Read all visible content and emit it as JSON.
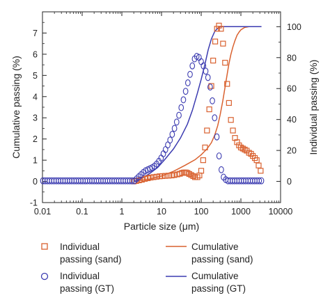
{
  "chart_data": {
    "type": "scatter",
    "xlabel": "Particle size (μm)",
    "ylabel": "Cumulative passing (%)",
    "y2label": "Individual passing (%)",
    "x_scale": "log",
    "xlim": [
      0.01,
      10000
    ],
    "ylim": [
      -1,
      8
    ],
    "y2lim": [
      -13.7,
      109.6
    ],
    "x_ticks": [
      "0.01",
      "0.1",
      "1",
      "10",
      "100",
      "1000",
      "10000"
    ],
    "y_ticks": [
      "-1",
      "0",
      "1",
      "2",
      "3",
      "4",
      "5",
      "6",
      "7"
    ],
    "y2_ticks": [
      "0",
      "20",
      "40",
      "60",
      "80",
      "100"
    ],
    "grid": false,
    "legend_position": "bottom",
    "colors": {
      "sand": "#d9612f",
      "gt": "#3b3bb0"
    },
    "series": [
      {
        "name": "Individual passing (sand)",
        "kind": "square-marker",
        "axis": "left",
        "x": [
          2.0,
          2.3,
          2.7,
          3.2,
          3.8,
          4.5,
          5.3,
          6.3,
          7.5,
          9.0,
          10.5,
          12.5,
          15,
          18,
          21,
          25,
          29,
          33,
          37,
          41,
          45,
          50,
          56,
          63,
          70,
          80,
          90,
          100,
          112,
          125,
          140,
          160,
          180,
          200,
          225,
          250,
          280,
          315,
          355,
          400,
          450,
          500,
          560,
          630,
          710,
          800,
          900,
          1000,
          1120,
          1250,
          1400,
          1600,
          1800,
          2000,
          2250,
          2500,
          2800,
          3150
        ],
        "y": [
          0.0,
          0.02,
          0.05,
          0.08,
          0.12,
          0.15,
          0.18,
          0.2,
          0.22,
          0.24,
          0.25,
          0.26,
          0.27,
          0.28,
          0.3,
          0.33,
          0.36,
          0.4,
          0.42,
          0.42,
          0.4,
          0.35,
          0.3,
          0.25,
          0.2,
          0.2,
          0.28,
          0.5,
          1.0,
          1.6,
          2.4,
          3.4,
          4.5,
          5.7,
          6.6,
          7.2,
          7.35,
          7.2,
          6.5,
          5.6,
          4.6,
          3.7,
          2.9,
          2.4,
          2.05,
          1.85,
          1.7,
          1.6,
          1.55,
          1.5,
          1.45,
          1.35,
          1.3,
          1.2,
          1.1,
          1.0,
          0.75,
          0.5
        ]
      },
      {
        "name": "Individual passing (GT)",
        "kind": "circle-marker",
        "axis": "left",
        "x": [
          0.0102,
          0.0116,
          0.0132,
          0.015,
          0.0171,
          0.0195,
          0.0222,
          0.0253,
          0.0288,
          0.0328,
          0.0373,
          0.0424,
          0.0483,
          0.055,
          0.0626,
          0.0712,
          0.0811,
          0.0923,
          0.105,
          0.12,
          0.136,
          0.155,
          0.177,
          0.201,
          0.229,
          0.26,
          0.296,
          0.337,
          0.384,
          0.437,
          0.497,
          0.566,
          0.644,
          0.733,
          0.834,
          0.949,
          1.08,
          1.23,
          1.4,
          1.59,
          1.81,
          2.06,
          2.35,
          2.67,
          3.04,
          3.46,
          3.94,
          4.49,
          5.11,
          5.81,
          6.62,
          7.53,
          8.57,
          9.75,
          11.1,
          12.6,
          14.4,
          16.4,
          18.6,
          21.2,
          24.1,
          27.5,
          31.3,
          35.6,
          40.5,
          46.1,
          52.4,
          59.7,
          67.9,
          77.3,
          88,
          100,
          114,
          130,
          148,
          168,
          191,
          218,
          248,
          282,
          321,
          365,
          416,
          473,
          539,
          613,
          698,
          794,
          904,
          1030,
          1170,
          1330,
          1520,
          1730,
          1970,
          2240,
          2550,
          2900,
          3300
        ],
        "y": [
          0.03,
          0.03,
          0.03,
          0.03,
          0.03,
          0.03,
          0.03,
          0.03,
          0.03,
          0.03,
          0.03,
          0.03,
          0.03,
          0.03,
          0.03,
          0.03,
          0.03,
          0.03,
          0.03,
          0.03,
          0.03,
          0.03,
          0.03,
          0.03,
          0.03,
          0.03,
          0.03,
          0.03,
          0.03,
          0.03,
          0.03,
          0.03,
          0.03,
          0.03,
          0.03,
          0.03,
          0.03,
          0.03,
          0.03,
          0.03,
          0.03,
          0.03,
          0.12,
          0.22,
          0.32,
          0.42,
          0.5,
          0.55,
          0.6,
          0.65,
          0.72,
          0.82,
          0.95,
          1.1,
          1.3,
          1.5,
          1.72,
          1.95,
          2.22,
          2.5,
          2.8,
          3.12,
          3.48,
          3.85,
          4.25,
          4.65,
          5.05,
          5.45,
          5.78,
          5.9,
          5.85,
          5.65,
          5.45,
          5.2,
          4.9,
          4.45,
          3.8,
          3.0,
          2.1,
          1.2,
          0.55,
          0.2,
          0.08,
          0.03,
          0.03,
          0.03,
          0.03,
          0.03,
          0.03,
          0.03,
          0.03,
          0.03,
          0.03,
          0.03,
          0.03,
          0.03,
          0.03,
          0.03,
          0.03
        ]
      },
      {
        "name": "Cumulative passing (sand)",
        "kind": "line",
        "axis": "right",
        "x": [
          2,
          5,
          10,
          20,
          40,
          70,
          100,
          140,
          180,
          220,
          260,
          300,
          350,
          400,
          450,
          500,
          560,
          630,
          710,
          800,
          900,
          1000,
          1250,
          1600,
          2000,
          2500,
          3150
        ],
        "y": [
          0,
          1.5,
          3.5,
          6.5,
          10.5,
          14,
          17.2,
          21,
          25,
          30,
          36,
          43,
          52,
          61,
          69,
          76,
          82,
          87,
          91,
          94.5,
          96.5,
          98,
          99.5,
          100,
          100,
          100,
          100
        ]
      },
      {
        "name": "Cumulative passing (GT)",
        "kind": "line",
        "axis": "right",
        "x": [
          2,
          3,
          5,
          8,
          12,
          20,
          30,
          45,
          60,
          80,
          100,
          125,
          150,
          180,
          220,
          260,
          300,
          350,
          400,
          500,
          700,
          1000,
          2000,
          3300
        ],
        "y": [
          0,
          1.5,
          5,
          9,
          14,
          21,
          28,
          37,
          46,
          57,
          66,
          76,
          85,
          92,
          97,
          99,
          100,
          100,
          100,
          100,
          100,
          100,
          100,
          100
        ]
      }
    ],
    "legend": [
      {
        "line1": "Individual",
        "line2": "passing (sand)"
      },
      {
        "line1": "Cumulative",
        "line2": "passing (sand)"
      },
      {
        "line1": "Individual",
        "line2": "passing (GT)"
      },
      {
        "line1": "Cumulative",
        "line2": "passing (GT)"
      }
    ]
  }
}
